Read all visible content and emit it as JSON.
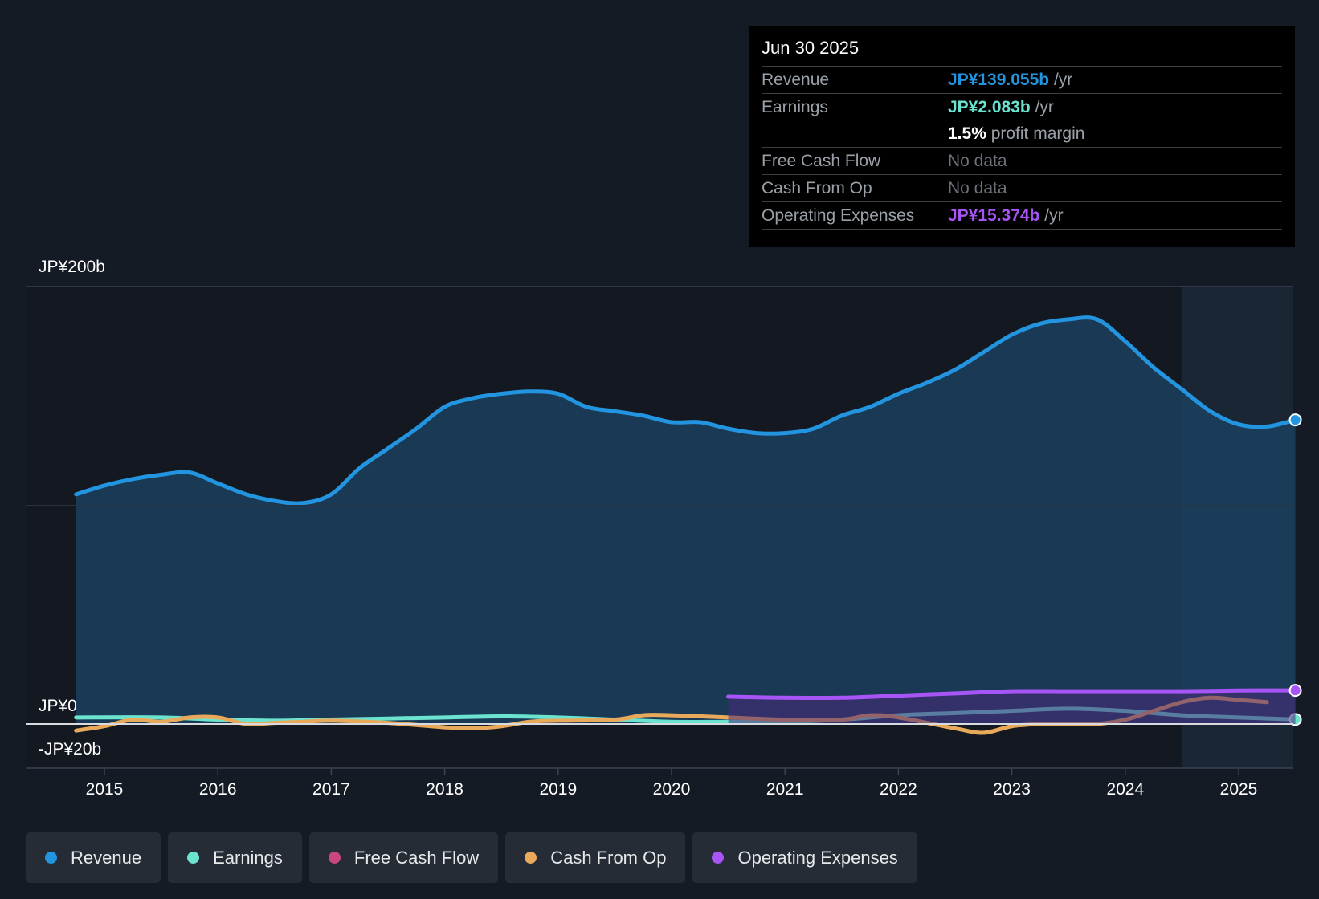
{
  "tooltip": {
    "date": "Jun 30 2025",
    "rows": [
      {
        "label": "Revenue",
        "value": "JP¥139.055b",
        "unit": " /yr",
        "color": "#2394df"
      },
      {
        "label": "Earnings",
        "value": "JP¥2.083b",
        "unit": " /yr",
        "color": "#6be3cf"
      },
      {
        "label": "",
        "value": "1.5%",
        "unit": " profit margin",
        "color": "#ffffff"
      },
      {
        "label": "Free Cash Flow",
        "value": "No data",
        "unit": "",
        "color": "#6c7079"
      },
      {
        "label": "Cash From Op",
        "value": "No data",
        "unit": "",
        "color": "#6c7079"
      },
      {
        "label": "Operating Expenses",
        "value": "JP¥15.374b",
        "unit": " /yr",
        "color": "#a855f7"
      }
    ]
  },
  "legend": [
    {
      "label": "Revenue",
      "color": "#2394df"
    },
    {
      "label": "Earnings",
      "color": "#6be3cf"
    },
    {
      "label": "Free Cash Flow",
      "color": "#c9467f"
    },
    {
      "label": "Cash From Op",
      "color": "#e8a95a"
    },
    {
      "label": "Operating Expenses",
      "color": "#a855f7"
    }
  ],
  "chart_data": {
    "type": "area",
    "currency": "JP¥",
    "y_labels": [
      "JP¥200b",
      "JP¥0",
      "-JP¥20b"
    ],
    "ylim": [
      -20,
      200
    ],
    "x_ticks": [
      "2015",
      "2016",
      "2017",
      "2018",
      "2019",
      "2020",
      "2021",
      "2022",
      "2023",
      "2024",
      "2025"
    ],
    "xlim": [
      2014.75,
      2025.5
    ],
    "forecast_start": 2024.5,
    "series": [
      {
        "name": "Revenue",
        "color": "#2394df",
        "x": [
          2014.75,
          2015.0,
          2015.25,
          2015.5,
          2015.75,
          2016.0,
          2016.25,
          2016.5,
          2016.75,
          2017.0,
          2017.25,
          2017.5,
          2017.75,
          2018.0,
          2018.25,
          2018.5,
          2018.75,
          2019.0,
          2019.25,
          2019.5,
          2019.75,
          2020.0,
          2020.25,
          2020.5,
          2020.75,
          2021.0,
          2021.25,
          2021.5,
          2021.75,
          2022.0,
          2022.25,
          2022.5,
          2022.75,
          2023.0,
          2023.25,
          2023.5,
          2023.75,
          2024.0,
          2024.25,
          2024.5,
          2024.75,
          2025.0,
          2025.25,
          2025.5
        ],
        "values": [
          105,
          109,
          112,
          114,
          115,
          110,
          105,
          102,
          101,
          105,
          117,
          126,
          135,
          145,
          149,
          151,
          152,
          151,
          145,
          143,
          141,
          138,
          138,
          135,
          133,
          133,
          135,
          141,
          145,
          151,
          156,
          162,
          170,
          178,
          183,
          185,
          185,
          175,
          163,
          153,
          143,
          137,
          136,
          139.055
        ]
      },
      {
        "name": "Earnings",
        "color": "#6be3cf",
        "x": [
          2014.75,
          2015.5,
          2016.0,
          2016.5,
          2017.0,
          2017.5,
          2018.0,
          2018.5,
          2019.0,
          2019.5,
          2020.0,
          2020.5,
          2021.0,
          2021.5,
          2022.0,
          2022.5,
          2023.0,
          2023.5,
          2024.0,
          2024.5,
          2025.0,
          2025.5
        ],
        "values": [
          3,
          3,
          2,
          1.5,
          2,
          2.5,
          3,
          3.5,
          3,
          2,
          1,
          1,
          1,
          2,
          4,
          5,
          6,
          7,
          6,
          4,
          3,
          2.083
        ]
      },
      {
        "name": "Cash From Op",
        "color": "#e8a95a",
        "x": [
          2014.75,
          2015.0,
          2015.25,
          2015.5,
          2015.75,
          2016.0,
          2016.25,
          2016.5,
          2016.75,
          2017.0,
          2017.5,
          2018.0,
          2018.25,
          2018.5,
          2018.75,
          2019.0,
          2019.5,
          2019.75,
          2020.0,
          2020.5,
          2021.0,
          2021.5,
          2021.75,
          2022.0,
          2022.5,
          2022.75,
          2023.0,
          2023.25,
          2023.5,
          2023.75,
          2024.0,
          2024.25,
          2024.5,
          2024.75,
          2025.0,
          2025.25
        ],
        "values": [
          -3,
          -1,
          2,
          1,
          3,
          3,
          0,
          0.5,
          1,
          1.5,
          0.5,
          -1.5,
          -2,
          -1,
          1,
          1.5,
          2,
          4,
          4,
          3,
          2,
          2,
          4,
          3,
          -2,
          -4,
          -1,
          0,
          0,
          0,
          2,
          6,
          10,
          12,
          11,
          10
        ]
      },
      {
        "name": "Operating Expenses",
        "color": "#a855f7",
        "x": [
          2020.5,
          2021.0,
          2021.5,
          2022.0,
          2022.5,
          2023.0,
          2023.5,
          2024.0,
          2024.5,
          2025.0,
          2025.5
        ],
        "values": [
          12.5,
          12,
          12,
          13,
          14,
          15,
          15,
          15,
          15,
          15.3,
          15.374
        ]
      }
    ]
  }
}
